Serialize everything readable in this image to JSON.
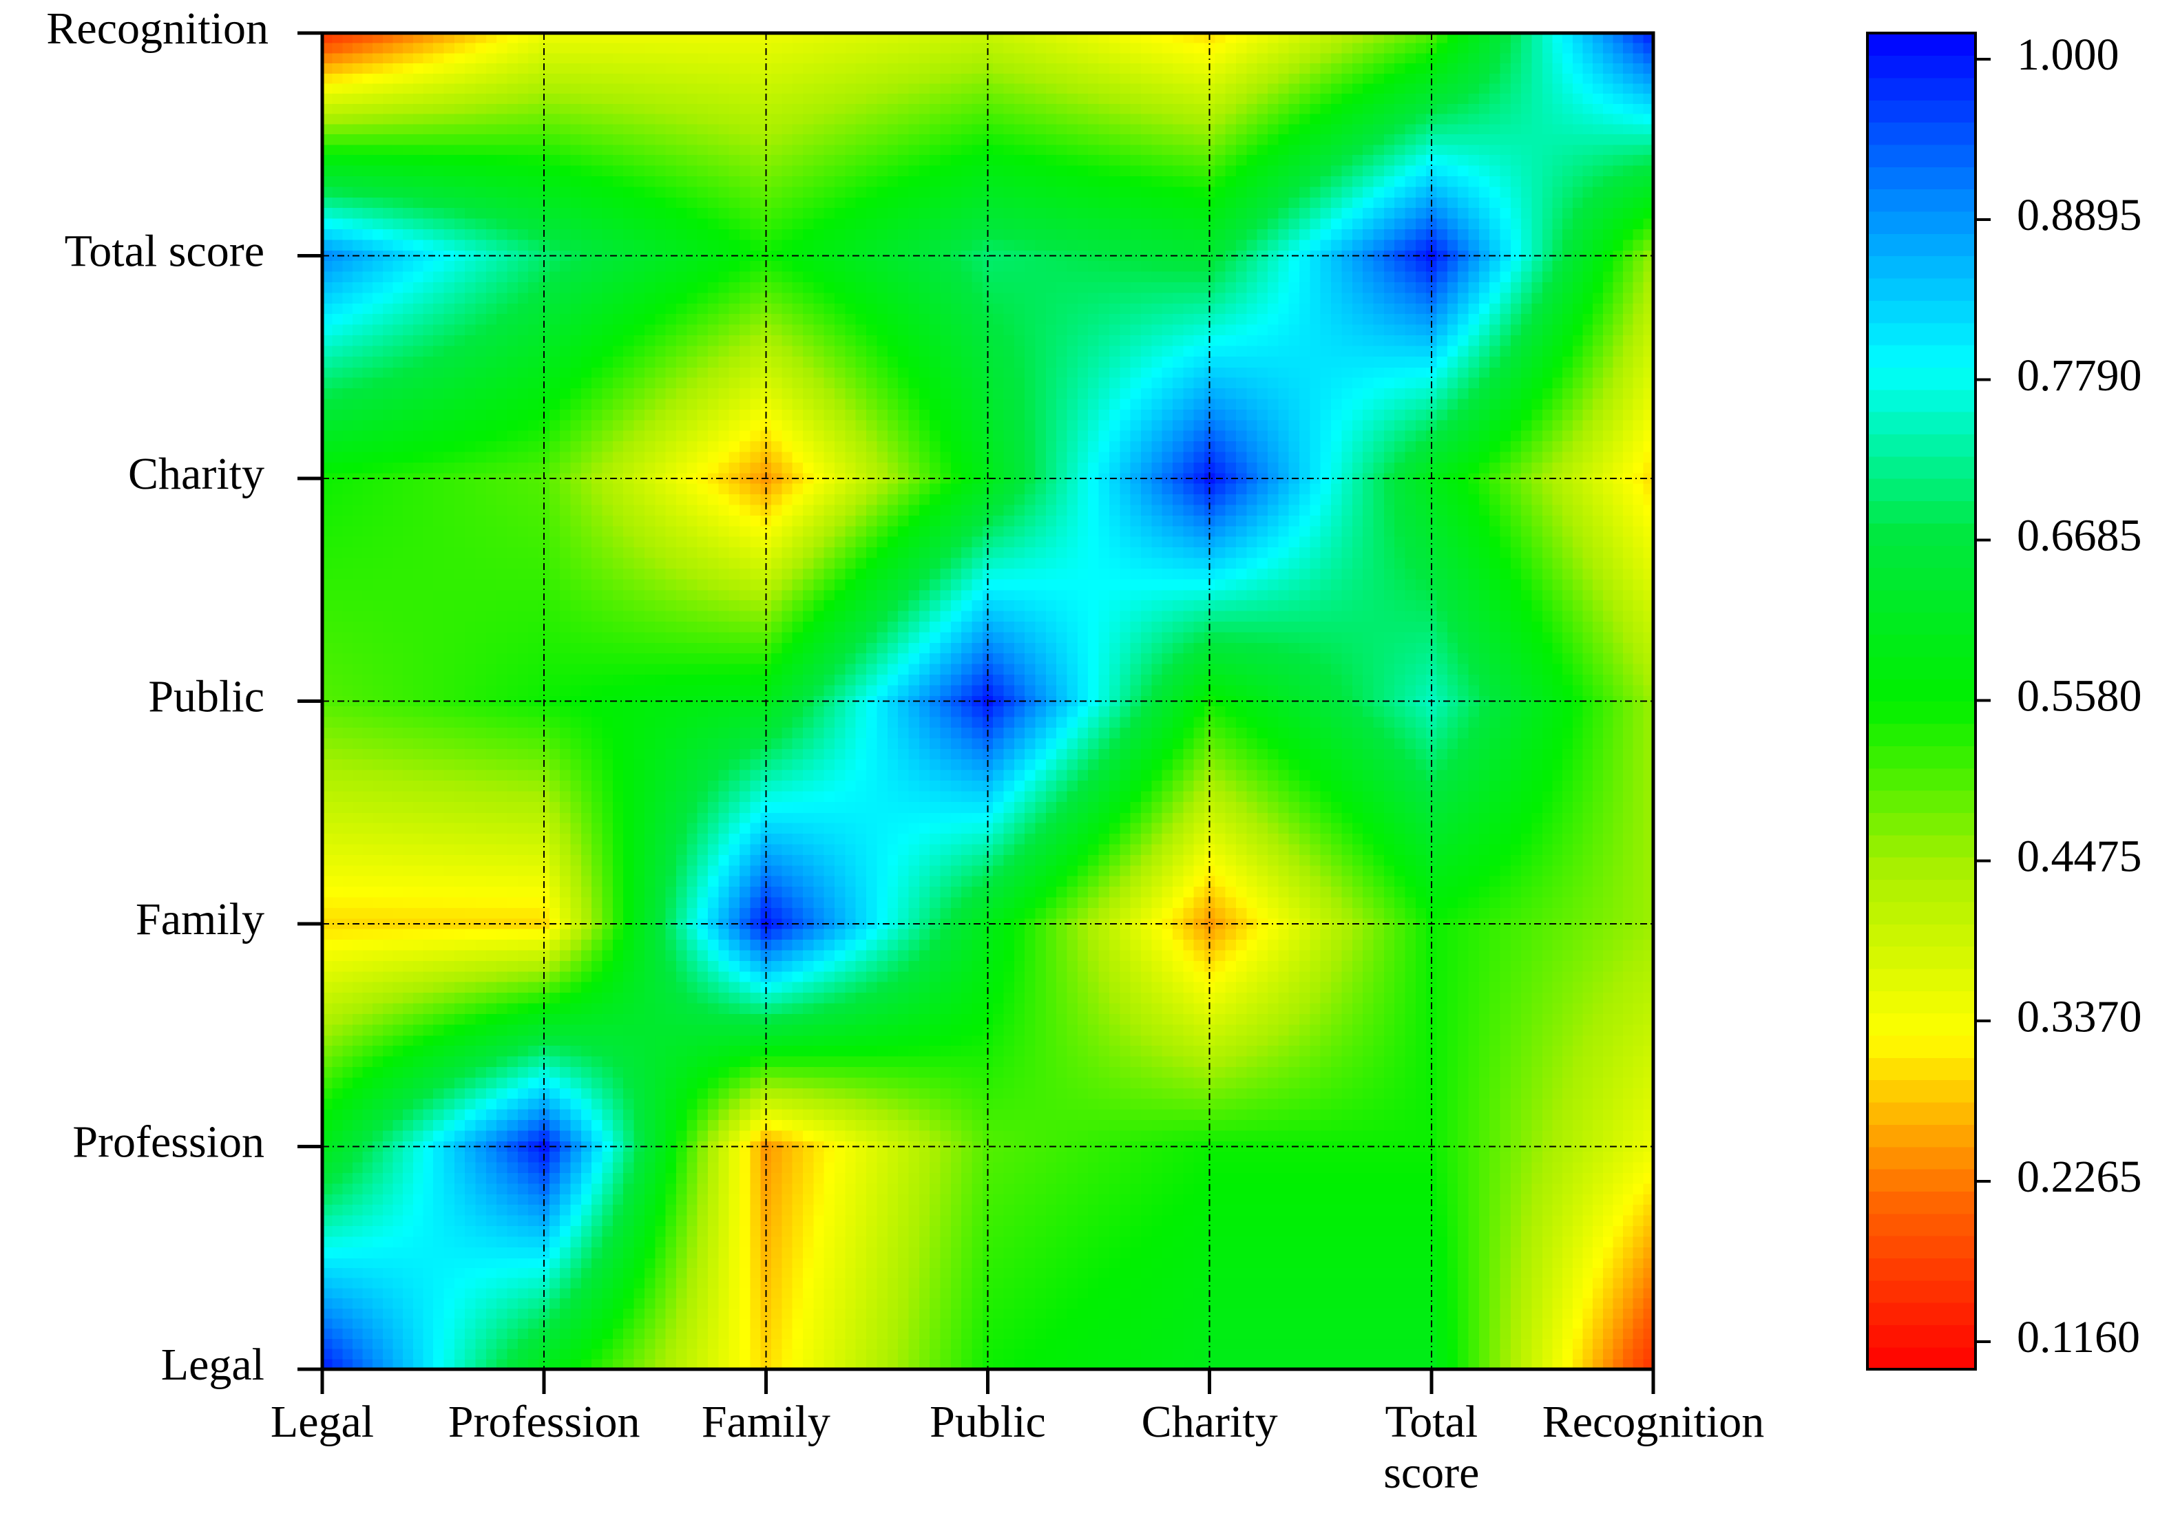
{
  "chart_data": {
    "type": "heatmap",
    "x": [
      "Legal",
      "Profession",
      "Family",
      "Public",
      "Charity",
      "Total score",
      "Recognition"
    ],
    "y": [
      "Legal",
      "Profession",
      "Family",
      "Public",
      "Charity",
      "Total score",
      "Recognition"
    ],
    "values": [
      [
        1.0,
        0.6,
        0.3,
        0.55,
        0.6,
        0.6,
        0.15
      ],
      [
        0.6,
        1.0,
        0.25,
        0.5,
        0.55,
        0.55,
        0.35
      ],
      [
        0.3,
        0.3,
        1.0,
        0.6,
        0.25,
        0.55,
        0.45
      ],
      [
        0.5,
        0.55,
        0.6,
        1.0,
        0.55,
        0.75,
        0.45
      ],
      [
        0.55,
        0.5,
        0.25,
        0.6,
        1.0,
        0.6,
        0.3
      ],
      [
        0.9,
        0.7,
        0.55,
        0.7,
        0.65,
        1.0,
        0.45
      ],
      [
        0.15,
        0.35,
        0.35,
        0.4,
        0.3,
        0.5,
        1.0
      ]
    ],
    "clim": [
      0.097,
      1.018
    ],
    "cticks": [
      {
        "value": 0.116,
        "label": "0.1160"
      },
      0.2265,
      {
        "value": 0.337,
        "label": "0.3370"
      },
      0.4475,
      {
        "value": 0.558,
        "label": "0.5580"
      },
      0.6685,
      {
        "value": 0.779,
        "label": "0.7790"
      },
      0.8895,
      {
        "value": 1.0,
        "label": "1.000"
      }
    ],
    "colormap": [
      "#ff0000",
      "#ff6600",
      "#ffff00",
      "#a8f000",
      "#00f000",
      "#00e840",
      "#00ffff",
      "#0088ff",
      "#0000ff"
    ],
    "grid": true
  }
}
